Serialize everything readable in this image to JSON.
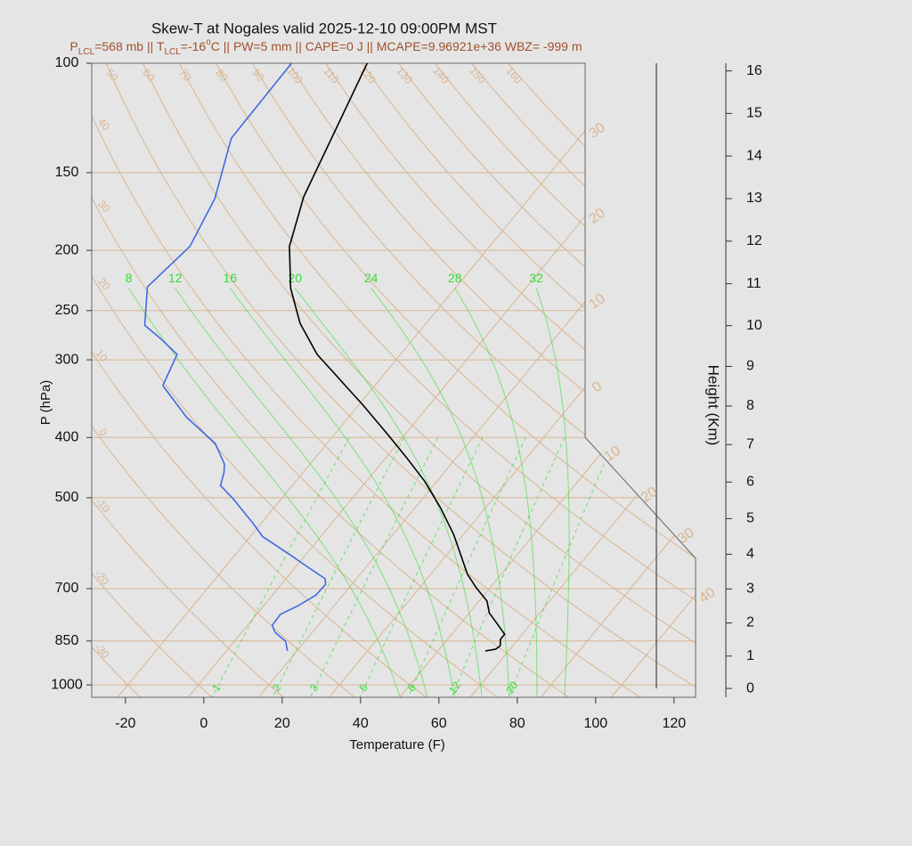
{
  "chart_data": {
    "type": "skewt",
    "title": "Skew-T at Nogales valid 2025-12-10 09:00PM MST",
    "subtitle": [
      {
        "text": "P"
      },
      {
        "text": "LCL",
        "shift": "sub"
      },
      {
        "text": "=568 mb || T"
      },
      {
        "text": "LCL",
        "shift": "sub"
      },
      {
        "text": "=-16"
      },
      {
        "text": "o",
        "shift": "super"
      },
      {
        "text": "C || PW=5 mm || CAPE=0 J || MCAPE=9.96921e+36 WBZ= -999 m"
      }
    ],
    "x_label": "Temperature (F)",
    "y_label": "P (hPa)",
    "y2_label": "Height (Km)",
    "xlim": [
      -28.6,
      125.5
    ],
    "xticks": [
      -20,
      0,
      20,
      40,
      60,
      80,
      100,
      120
    ],
    "ylim": [
      1047,
      100
    ],
    "yticks": [
      100,
      150,
      200,
      250,
      300,
      400,
      500,
      700,
      850,
      1000
    ],
    "log_y": true,
    "grid": true,
    "y2ticks": [
      0,
      1,
      2,
      3,
      4,
      5,
      6,
      7,
      8,
      9,
      10,
      11,
      12,
      13,
      14,
      15,
      16
    ],
    "series": [
      {
        "color": "#000000",
        "pressure": [
          882,
          876,
          865,
          845,
          829,
          796,
          766,
          733,
          698,
          664,
          573,
          519,
          470,
          433,
          398,
          355,
          294,
          262,
          230,
          197,
          164,
          100
        ],
        "values": [
          62.1,
          64.4,
          64.8,
          63.5,
          63.5,
          59.2,
          55.1,
          52.0,
          46.5,
          41.4,
          29.5,
          20.5,
          10.8,
          1.8,
          -7.7,
          -20.8,
          -43.3,
          -54.2,
          -64.0,
          -73.1,
          -79.9,
          -91.8
        ]
      },
      {
        "color": "#4169e1",
        "pressure": [
          882,
          851,
          823,
          802,
          770,
          746,
          717,
          689,
          675,
          645,
          616,
          577,
          551,
          502,
          478,
          455,
          441,
          409,
          371,
          330,
          294,
          277,
          264,
          229,
          197,
          165,
          132,
          100
        ],
        "values": [
          11.6,
          9.1,
          4.5,
          2.3,
          2.1,
          4.8,
          7.1,
          7.3,
          6.0,
          -1.2,
          -8.4,
          -18.9,
          -23.8,
          -34.3,
          -40.3,
          -42.2,
          -43.9,
          -50.5,
          -63.4,
          -76.1,
          -79.0,
          -86.7,
          -93.4,
          -100.8,
          -98.5,
          -102.2,
          -110.7,
          -111.1
        ]
      }
    ],
    "isotherms": [
      {
        "value": -30,
        "label": "30"
      },
      {
        "value": -20,
        "label": "20"
      },
      {
        "value": -10,
        "label": "10"
      },
      0,
      10,
      20,
      30,
      40
    ],
    "dry_adiabats": [
      -30,
      -20,
      -10,
      0,
      10,
      20,
      30,
      40,
      50,
      60,
      70,
      80,
      90,
      100,
      110,
      120,
      130,
      140,
      150,
      160
    ],
    "moist_adiabats": [
      8,
      12,
      16,
      20,
      24,
      28,
      32
    ],
    "mixing_ratios": [
      1,
      2,
      3,
      5,
      8,
      12,
      20
    ],
    "reference_color": "#d9b590",
    "moisture_color": "#33dd33"
  }
}
